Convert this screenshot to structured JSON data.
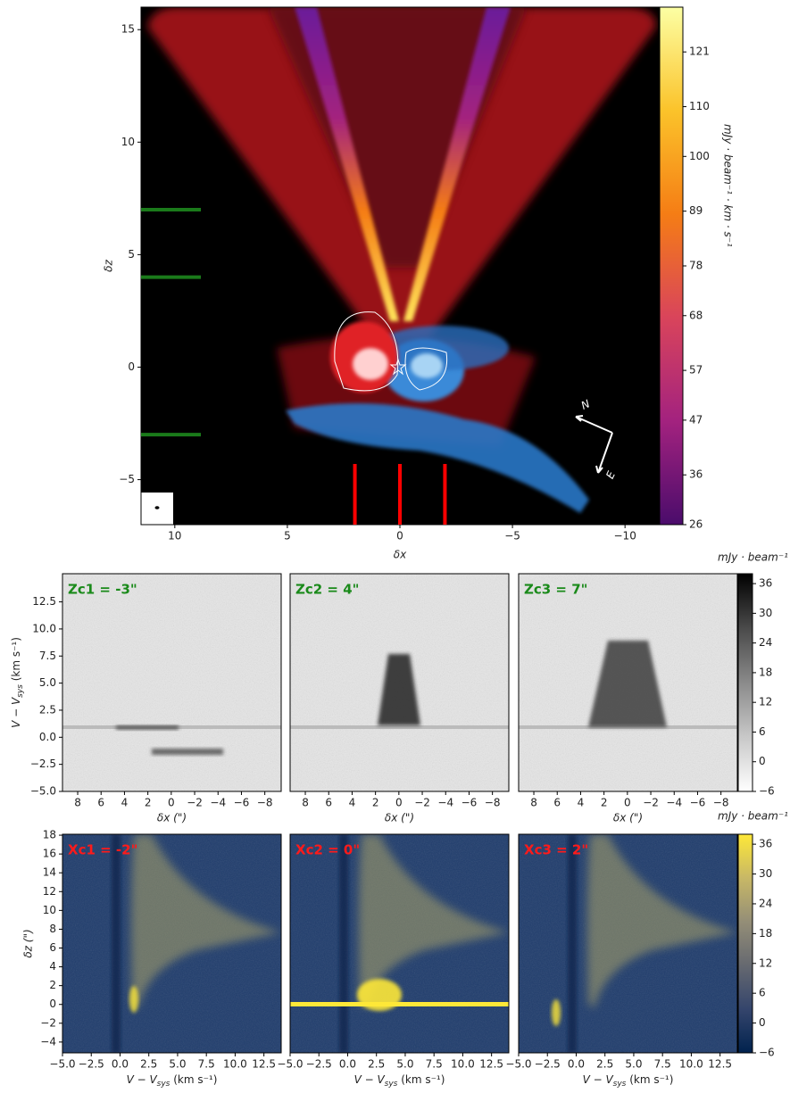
{
  "chart_data": [
    {
      "type": "image",
      "xlabel": "δx",
      "ylabel": "δz",
      "xlim": [
        11.5,
        -11.5
      ],
      "ylim": [
        -7,
        16
      ],
      "xticks": [
        10,
        5,
        0,
        {
          "value": -5,
          "label": "−5"
        },
        {
          "value": -10,
          "label": "−10"
        }
      ],
      "yticks": [
        {
          "value": -5,
          "label": "−5"
        },
        0,
        5,
        10,
        15
      ],
      "hlines": {
        "values": [
          -3,
          4,
          7
        ],
        "color": "#1a7a1a"
      },
      "vlines": {
        "values": [
          -2,
          0,
          2
        ],
        "color": "#ff0000"
      },
      "compass": {
        "N": "N",
        "E": "E"
      },
      "colorbar": {
        "label": "mJy · beam⁻¹ · km · s⁻¹",
        "lim": [
          26,
          130
        ],
        "ticks": [
          26,
          36,
          47,
          57,
          68,
          78,
          89,
          100,
          110,
          121
        ],
        "colormap": [
          "#4a0c6b",
          "#a3227f",
          "#d9445b",
          "#f57d15",
          "#fbc32a",
          "#fcffa4"
        ]
      }
    },
    {
      "type": "image",
      "title": "Zc1 = -3\"",
      "title_color": "#1a8a1a",
      "xlabel": "δx (\")",
      "ylabel": {
        "main": "V − V",
        "sub": "sys",
        "unit": " (km s⁻¹)"
      },
      "xlim": [
        9.3,
        -9.4
      ],
      "ylim": [
        -5,
        15.1
      ],
      "xticks": [
        8,
        6,
        4,
        2,
        0,
        {
          "value": -2,
          "label": "−2"
        },
        {
          "value": -4,
          "label": "−4"
        },
        {
          "value": -6,
          "label": "−6"
        },
        {
          "value": -8,
          "label": "−8"
        }
      ],
      "yticks": [
        {
          "value": -5,
          "label": "−5.0"
        },
        {
          "value": -2.5,
          "label": "−2.5"
        },
        {
          "value": 0,
          "label": "0.0"
        },
        2.5,
        {
          "value": 5,
          "label": "5.0"
        },
        7.5,
        {
          "value": 10,
          "label": "10.0"
        },
        12.5
      ]
    },
    {
      "type": "image",
      "title": "Zc2 = 4\"",
      "title_color": "#1a8a1a",
      "xlabel": "δx (\")",
      "xlim": [
        9.3,
        -9.4
      ],
      "ylim": [
        -5,
        15.1
      ],
      "xticks": [
        8,
        6,
        4,
        2,
        0,
        {
          "value": -2,
          "label": "−2"
        },
        {
          "value": -4,
          "label": "−4"
        },
        {
          "value": -6,
          "label": "−6"
        },
        {
          "value": -8,
          "label": "−8"
        }
      ]
    },
    {
      "type": "image",
      "title": "Zc3 = 7\"",
      "title_color": "#1a8a1a",
      "xlabel": "δx (\")",
      "xlim": [
        9.3,
        -9.4
      ],
      "ylim": [
        -5,
        15.1
      ],
      "xticks": [
        8,
        6,
        4,
        2,
        0,
        {
          "value": -2,
          "label": "−2"
        },
        {
          "value": -4,
          "label": "−4"
        },
        {
          "value": -6,
          "label": "−6"
        },
        {
          "value": -8,
          "label": "−8"
        }
      ],
      "colorbar": {
        "label": "mJy · beam⁻¹",
        "lim": [
          -6,
          38
        ],
        "ticks": [
          {
            "value": -6,
            "label": "−6"
          },
          0,
          6,
          12,
          18,
          24,
          30,
          36
        ],
        "colormap": [
          "#ffffff",
          "#c8c8c8",
          "#8a8a8a",
          "#4a4a4a",
          "#000000"
        ]
      }
    },
    {
      "type": "image",
      "title": "Xc1 = -2\"",
      "title_color": "#ff1a1a",
      "xlabel": {
        "main": "V − V",
        "sub": "sys",
        "unit": " (km s⁻¹)"
      },
      "ylabel": "δz (\")",
      "xlim": [
        -5,
        14
      ],
      "ylim": [
        -5.15,
        18.1
      ],
      "xticks": [
        {
          "value": -5,
          "label": "−5.0"
        },
        {
          "value": -2.5,
          "label": "−2.5"
        },
        {
          "value": 0,
          "label": "0.0"
        },
        2.5,
        {
          "value": 5,
          "label": "5.0"
        },
        7.5,
        {
          "value": 10,
          "label": "10.0"
        },
        12.5
      ],
      "yticks": [
        {
          "value": -4,
          "label": "−4"
        },
        {
          "value": -2,
          "label": "−2"
        },
        0,
        2,
        4,
        6,
        8,
        10,
        12,
        14,
        16,
        18
      ]
    },
    {
      "type": "image",
      "title": "Xc2 = 0\"",
      "title_color": "#ff1a1a",
      "xlabel": {
        "main": "V − V",
        "sub": "sys",
        "unit": " (km s⁻¹)"
      },
      "xlim": [
        -5,
        14
      ],
      "ylim": [
        -5.15,
        18.1
      ],
      "xticks": [
        {
          "value": -5,
          "label": "−5.0"
        },
        {
          "value": -2.5,
          "label": "−2.5"
        },
        {
          "value": 0,
          "label": "0.0"
        },
        2.5,
        {
          "value": 5,
          "label": "5.0"
        },
        7.5,
        {
          "value": 10,
          "label": "10.0"
        },
        12.5
      ]
    },
    {
      "type": "image",
      "title": "Xc3 = 2\"",
      "title_color": "#ff1a1a",
      "xlabel": {
        "main": "V − V",
        "sub": "sys",
        "unit": " (km s⁻¹)"
      },
      "xlim": [
        -5,
        14
      ],
      "ylim": [
        -5.15,
        18.1
      ],
      "xticks": [
        {
          "value": -5,
          "label": "−5.0"
        },
        {
          "value": -2.5,
          "label": "−2.5"
        },
        {
          "value": 0,
          "label": "0.0"
        },
        2.5,
        {
          "value": 5,
          "label": "5.0"
        },
        7.5,
        {
          "value": 10,
          "label": "10.0"
        },
        12.5
      ],
      "colorbar": {
        "label": "mJy · beam⁻¹",
        "lim": [
          -6,
          38
        ],
        "ticks": [
          {
            "value": -6,
            "label": "−6"
          },
          0,
          6,
          12,
          18,
          24,
          30,
          36
        ],
        "colormap": [
          "#00224e",
          "#35456c",
          "#666970",
          "#948e77",
          "#c8b866",
          "#fee838"
        ]
      }
    }
  ]
}
